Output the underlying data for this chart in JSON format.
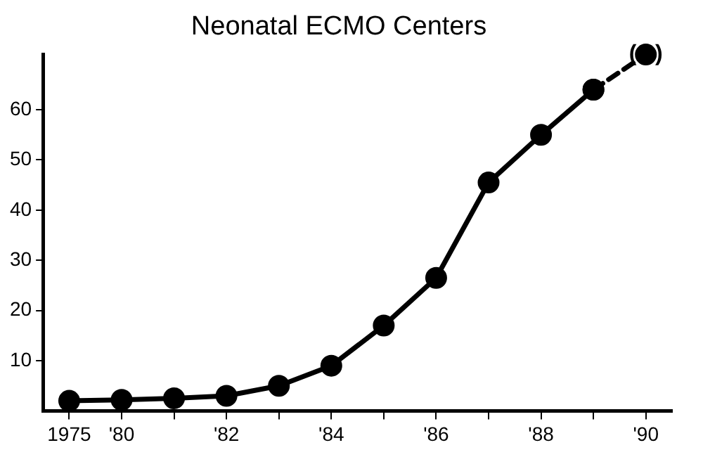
{
  "chart_data": {
    "type": "line",
    "title": "Neonatal ECMO Centers",
    "categories": [
      "1975",
      "'80",
      null,
      "'82",
      null,
      "'84",
      null,
      "'86",
      null,
      "'88",
      null,
      "'90"
    ],
    "series": [
      {
        "color": "#000000",
        "values": [
          2,
          2.2,
          2.5,
          3,
          5,
          9,
          17,
          26.5,
          45.5,
          55,
          64,
          null
        ],
        "line_style": "solid",
        "marker": "circle"
      },
      {
        "color": "#000000",
        "values": [
          null,
          null,
          null,
          null,
          null,
          null,
          null,
          null,
          null,
          null,
          64,
          71
        ],
        "line_style": "dashed",
        "marker": "circle"
      }
    ],
    "ylim": [
      0,
      71
    ],
    "yticks": [
      10,
      20,
      30,
      40,
      50,
      60
    ],
    "grid": false,
    "annotations": [
      {
        "text": "(   )",
        "x": "'90",
        "y": 71
      }
    ]
  }
}
